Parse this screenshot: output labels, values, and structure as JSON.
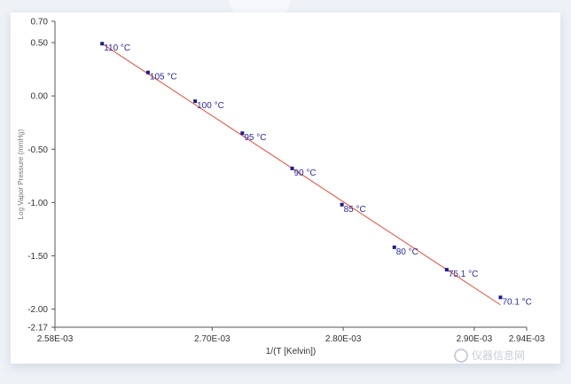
{
  "chart_data": {
    "type": "scatter",
    "title": "",
    "xlabel": "1/(T [Kelvin])",
    "ylabel": "Log Vapor Pressure (mmHg)",
    "xlim": [
      0.00258,
      0.00294
    ],
    "ylim": [
      -2.17,
      0.7
    ],
    "x_ticks": [
      {
        "value": 0.00258,
        "label": "2.58E-03"
      },
      {
        "value": 0.0027,
        "label": "2.70E-03"
      },
      {
        "value": 0.0028,
        "label": "2.80E-03"
      },
      {
        "value": 0.0029,
        "label": "2.90E-03"
      },
      {
        "value": 0.00294,
        "label": "2.94E-03"
      }
    ],
    "y_ticks": [
      {
        "value": 0.7,
        "label": "0.70"
      },
      {
        "value": 0.5,
        "label": "0.50"
      },
      {
        "value": 0.0,
        "label": "0.00"
      },
      {
        "value": -0.5,
        "label": "-0.50"
      },
      {
        "value": -1.0,
        "label": "-1.00"
      },
      {
        "value": -1.5,
        "label": "-1.50"
      },
      {
        "value": -2.0,
        "label": "-2.00"
      },
      {
        "value": -2.17,
        "label": "-2.17"
      }
    ],
    "grid": false,
    "legend": "none",
    "points": [
      {
        "x": 0.002616,
        "y": 0.49,
        "label": "110 °C"
      },
      {
        "x": 0.002651,
        "y": 0.22,
        "label": "105 °C"
      },
      {
        "x": 0.002687,
        "y": -0.05,
        "label": "100 °C"
      },
      {
        "x": 0.002723,
        "y": -0.35,
        "label": "95 °C"
      },
      {
        "x": 0.002761,
        "y": -0.68,
        "label": "90 °C"
      },
      {
        "x": 0.002799,
        "y": -1.02,
        "label": "85 °C"
      },
      {
        "x": 0.002839,
        "y": -1.42,
        "label": "80 °C"
      },
      {
        "x": 0.002879,
        "y": -1.63,
        "label": "75.1 °C"
      },
      {
        "x": 0.00292,
        "y": -1.89,
        "label": "70.1 °C"
      }
    ],
    "fit_line": {
      "x": [
        0.002616,
        0.00292
      ],
      "y": [
        0.49,
        -1.96
      ]
    },
    "colors": {
      "point": "#1c1c8c",
      "fit_line": "#e0503a",
      "label": "#2a2a9a",
      "axis": "#555555"
    }
  },
  "watermark": {
    "text": "仪器信息网"
  }
}
